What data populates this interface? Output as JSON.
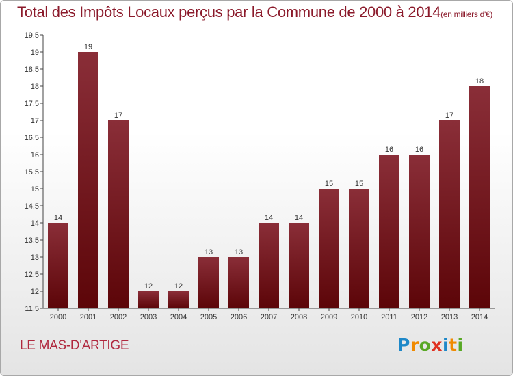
{
  "header": {
    "title": "Total des Impôts Locaux perçus par la Commune de 2000 à 2014",
    "title_unit": "(en milliers d'€)"
  },
  "footer": {
    "commune": "LE MAS-D'ARTIGE",
    "logo": [
      "P",
      "r",
      "o",
      "x",
      "i",
      "t",
      "i"
    ]
  },
  "colors": {
    "bar": "#7a1a24",
    "title": "#8b1a2b",
    "commune": "#b0283e",
    "logo": [
      "#1e88c8",
      "#f08a00",
      "#58a825",
      "#e03020",
      "#1e88c8",
      "#f08a00",
      "#58a825"
    ]
  },
  "chart_data": {
    "type": "bar",
    "title": "Total des Impôts Locaux perçus par la Commune de 2000 à 2014",
    "categories": [
      "2000",
      "2001",
      "2002",
      "2003",
      "2004",
      "2005",
      "2006",
      "2007",
      "2008",
      "2009",
      "2010",
      "2011",
      "2012",
      "2013",
      "2014"
    ],
    "values": [
      14,
      19,
      17,
      12,
      12,
      13,
      13,
      14,
      14,
      15,
      15,
      16,
      16,
      17,
      18
    ],
    "data_labels": [
      "14",
      "19",
      "17",
      "12",
      "12",
      "13",
      "13",
      "14",
      "14",
      "15",
      "15",
      "16",
      "16",
      "17",
      "18"
    ],
    "ylim": [
      11.5,
      19.5
    ],
    "yticks": [
      "11.5",
      "12",
      "12.5",
      "13",
      "13.5",
      "14",
      "14.5",
      "15",
      "15.5",
      "16",
      "16.5",
      "17",
      "17.5",
      "18",
      "18.5",
      "19",
      "19.5"
    ],
    "xlabel": "",
    "ylabel": "",
    "grid": false,
    "legend": "none"
  }
}
